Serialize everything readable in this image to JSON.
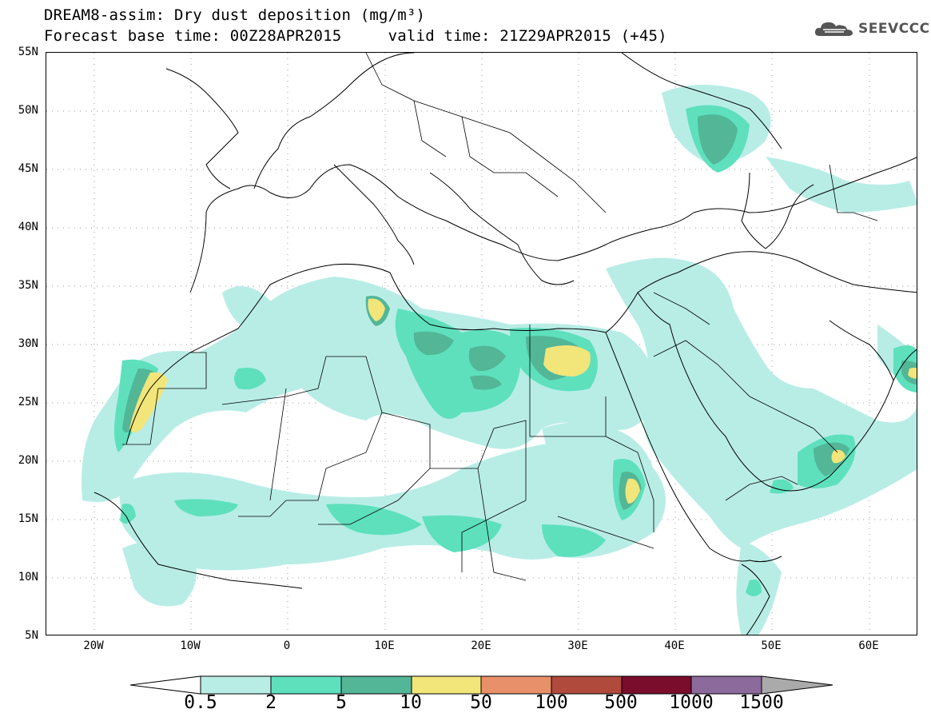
{
  "title": {
    "line1": "DREAM8-assim: Dry dust deposition (mg/m³)",
    "line2": "Forecast base time: 00Z28APR2015     valid time: 21Z29APR2015 (+45)"
  },
  "logo": {
    "text": "SEEVCCC",
    "icon": "cloud-icon"
  },
  "axes": {
    "lat_labels": [
      "55N",
      "50N",
      "45N",
      "40N",
      "35N",
      "30N",
      "25N",
      "20N",
      "15N",
      "10N",
      "5N"
    ],
    "lon_labels": [
      "20W",
      "10W",
      "0",
      "10E",
      "20E",
      "30E",
      "40E",
      "50E",
      "60E"
    ],
    "lat_range": [
      5,
      55
    ],
    "lon_range": [
      -25,
      65
    ]
  },
  "colorbar": {
    "labels": [
      "0.5",
      "2",
      "5",
      "10",
      "50",
      "100",
      "500",
      "1000",
      "1500"
    ],
    "colors": [
      "#b8ede6",
      "#5ee0bd",
      "#52b697",
      "#f2e57a",
      "#e8906a",
      "#b04a3c",
      "#7a0c2c",
      "#8c6a9c"
    ],
    "under_color": "#ffffff",
    "over_color": "#aaaaaa"
  },
  "legend_colors": {
    "level1": "#b8ede6",
    "level2": "#5ee0bd",
    "level3": "#52b697",
    "level4": "#f2e57a"
  }
}
